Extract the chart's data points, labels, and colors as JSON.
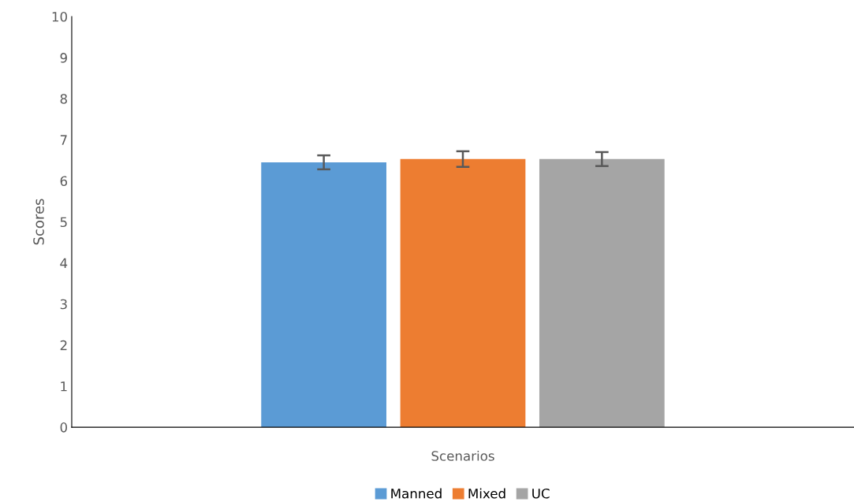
{
  "chart_data": {
    "type": "bar",
    "xlabel": "Scenarios",
    "ylabel": "Scores",
    "categories": [
      null
    ],
    "series": [
      {
        "name": "Manned",
        "color": "#5b9bd5",
        "values": [
          6.45
        ],
        "errors": [
          0.17
        ]
      },
      {
        "name": "Mixed",
        "color": "#ed7d31",
        "values": [
          6.53
        ],
        "errors": [
          0.19
        ]
      },
      {
        "name": "UC",
        "color": "#a5a5a5",
        "values": [
          6.53
        ],
        "errors": [
          0.17
        ]
      }
    ],
    "ylim": [
      0,
      10
    ],
    "yticks": [
      0,
      1,
      2,
      3,
      4,
      5,
      6,
      7,
      8,
      9,
      10
    ],
    "grid": false,
    "legend": "bottom"
  }
}
